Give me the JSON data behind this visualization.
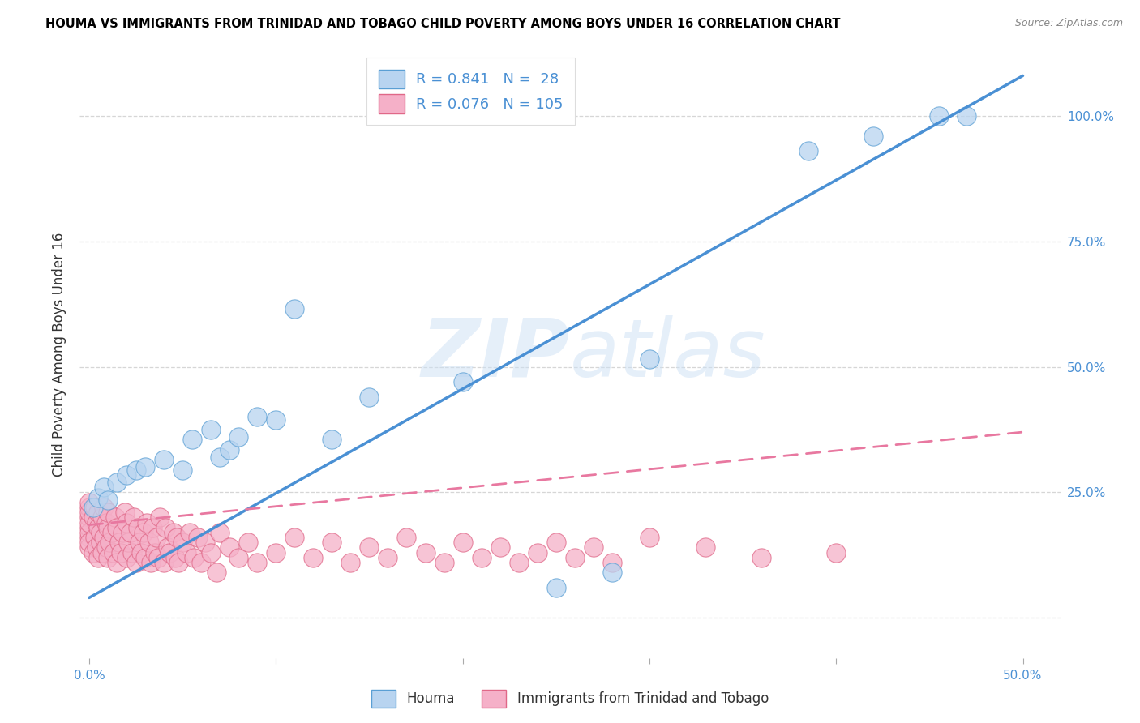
{
  "title": "HOUMA VS IMMIGRANTS FROM TRINIDAD AND TOBAGO CHILD POVERTY AMONG BOYS UNDER 16 CORRELATION CHART",
  "source": "Source: ZipAtlas.com",
  "ylabel": "Child Poverty Among Boys Under 16",
  "xlim": [
    -0.005,
    0.52
  ],
  "ylim": [
    -0.08,
    1.13
  ],
  "houma_R": 0.841,
  "houma_N": 28,
  "tt_R": 0.076,
  "tt_N": 105,
  "houma_color": "#b8d4f0",
  "tt_color": "#f5b0c8",
  "houma_edge_color": "#5a9fd4",
  "tt_edge_color": "#e06888",
  "houma_line_color": "#4a90d4",
  "tt_line_color": "#e878a0",
  "legend_label_houma": "Houma",
  "legend_label_tt": "Immigrants from Trinidad and Tobago",
  "watermark_zip": "ZIP",
  "watermark_atlas": "atlas",
  "houma_x": [
    0.002,
    0.005,
    0.008,
    0.01,
    0.015,
    0.02,
    0.025,
    0.03,
    0.04,
    0.05,
    0.055,
    0.065,
    0.07,
    0.075,
    0.08,
    0.09,
    0.1,
    0.11,
    0.13,
    0.15,
    0.2,
    0.25,
    0.28,
    0.3,
    0.385,
    0.42,
    0.455,
    0.47
  ],
  "houma_y": [
    0.22,
    0.24,
    0.26,
    0.235,
    0.27,
    0.285,
    0.295,
    0.3,
    0.315,
    0.295,
    0.355,
    0.375,
    0.32,
    0.335,
    0.36,
    0.4,
    0.395,
    0.615,
    0.355,
    0.44,
    0.47,
    0.06,
    0.09,
    0.515,
    0.93,
    0.96,
    1.0,
    1.0
  ],
  "tt_x": [
    0.0,
    0.0,
    0.0,
    0.0,
    0.0,
    0.0,
    0.0,
    0.0,
    0.0,
    0.0,
    0.002,
    0.002,
    0.003,
    0.003,
    0.004,
    0.004,
    0.005,
    0.005,
    0.005,
    0.006,
    0.006,
    0.007,
    0.007,
    0.008,
    0.008,
    0.009,
    0.009,
    0.01,
    0.01,
    0.01,
    0.011,
    0.012,
    0.013,
    0.014,
    0.015,
    0.015,
    0.016,
    0.017,
    0.018,
    0.019,
    0.02,
    0.02,
    0.021,
    0.022,
    0.023,
    0.024,
    0.025,
    0.026,
    0.027,
    0.028,
    0.029,
    0.03,
    0.031,
    0.032,
    0.033,
    0.034,
    0.035,
    0.036,
    0.037,
    0.038,
    0.04,
    0.041,
    0.042,
    0.043,
    0.045,
    0.046,
    0.047,
    0.048,
    0.05,
    0.052,
    0.054,
    0.056,
    0.058,
    0.06,
    0.062,
    0.065,
    0.068,
    0.07,
    0.075,
    0.08,
    0.085,
    0.09,
    0.1,
    0.11,
    0.12,
    0.13,
    0.14,
    0.15,
    0.16,
    0.17,
    0.18,
    0.19,
    0.2,
    0.21,
    0.22,
    0.23,
    0.24,
    0.25,
    0.26,
    0.27,
    0.28,
    0.3,
    0.33,
    0.36,
    0.4
  ],
  "tt_y": [
    0.16,
    0.18,
    0.2,
    0.22,
    0.14,
    0.17,
    0.19,
    0.21,
    0.15,
    0.23,
    0.13,
    0.2,
    0.16,
    0.22,
    0.14,
    0.19,
    0.12,
    0.18,
    0.21,
    0.15,
    0.17,
    0.13,
    0.2,
    0.16,
    0.22,
    0.14,
    0.19,
    0.12,
    0.18,
    0.21,
    0.15,
    0.17,
    0.13,
    0.2,
    0.11,
    0.18,
    0.15,
    0.13,
    0.17,
    0.21,
    0.12,
    0.19,
    0.15,
    0.17,
    0.13,
    0.2,
    0.11,
    0.18,
    0.15,
    0.13,
    0.17,
    0.12,
    0.19,
    0.15,
    0.11,
    0.18,
    0.13,
    0.16,
    0.12,
    0.2,
    0.11,
    0.18,
    0.14,
    0.13,
    0.17,
    0.12,
    0.16,
    0.11,
    0.15,
    0.13,
    0.17,
    0.12,
    0.16,
    0.11,
    0.15,
    0.13,
    0.09,
    0.17,
    0.14,
    0.12,
    0.15,
    0.11,
    0.13,
    0.16,
    0.12,
    0.15,
    0.11,
    0.14,
    0.12,
    0.16,
    0.13,
    0.11,
    0.15,
    0.12,
    0.14,
    0.11,
    0.13,
    0.15,
    0.12,
    0.14,
    0.11,
    0.16,
    0.14,
    0.12,
    0.13
  ],
  "houma_trend_x": [
    0.0,
    0.5
  ],
  "houma_trend_y": [
    0.04,
    1.08
  ],
  "tt_trend_x": [
    0.0,
    0.5
  ],
  "tt_trend_y": [
    0.185,
    0.37
  ]
}
